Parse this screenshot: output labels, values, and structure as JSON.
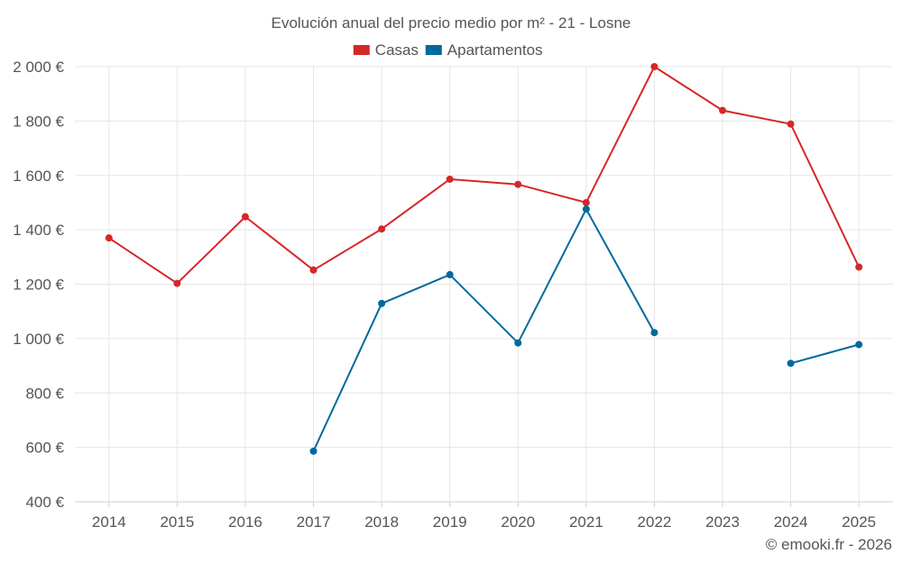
{
  "chart_data": {
    "type": "line",
    "title": "Evolución anual del precio medio por m² - 21 - Losne",
    "categories": [
      "2014",
      "2015",
      "2016",
      "2017",
      "2018",
      "2019",
      "2020",
      "2021",
      "2022",
      "2023",
      "2024",
      "2025"
    ],
    "series": [
      {
        "name": "Casas",
        "color": "#d62728",
        "values": [
          1370,
          1203,
          1448,
          1252,
          1403,
          1586,
          1567,
          1500,
          2000,
          1839,
          1789,
          1263
        ]
      },
      {
        "name": "Apartamentos",
        "color": "#00699e",
        "values": [
          null,
          null,
          null,
          586,
          1129,
          1235,
          984,
          1476,
          1022,
          null,
          909,
          978
        ]
      }
    ],
    "ylim": [
      400,
      2000
    ],
    "yticks": [
      400,
      600,
      800,
      1000,
      1200,
      1400,
      1600,
      1800,
      2000
    ],
    "ytick_labels": [
      "400 €",
      "600 €",
      "800 €",
      "1 000 €",
      "1 200 €",
      "1 400 €",
      "1 600 €",
      "1 800 €",
      "2 000 €"
    ],
    "xlabel": "",
    "ylabel": "",
    "grid": true,
    "legend_position": "top-center",
    "credit": "© emooki.fr - 2026"
  }
}
